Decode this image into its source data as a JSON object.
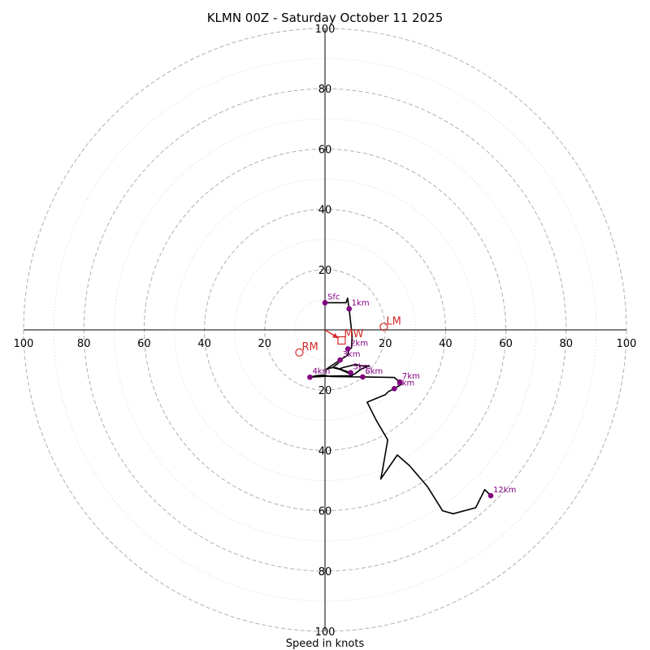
{
  "chart_data": {
    "type": "hodograph",
    "title": "KLMN 00Z - Saturday October 11 2025",
    "xlabel": "Speed in knots",
    "xlim": [
      -100,
      100
    ],
    "ylim": [
      -100,
      100
    ],
    "rings_dashed": [
      20,
      40,
      60,
      80,
      100
    ],
    "rings_dotted": [
      10,
      30,
      50,
      70,
      90
    ],
    "x_ticks": [
      {
        "value": -100,
        "label": "100"
      },
      {
        "value": -80,
        "label": "80"
      },
      {
        "value": -60,
        "label": "60"
      },
      {
        "value": -40,
        "label": "40"
      },
      {
        "value": -20,
        "label": "20"
      },
      {
        "value": 20,
        "label": "20"
      },
      {
        "value": 40,
        "label": "40"
      },
      {
        "value": 60,
        "label": "60"
      },
      {
        "value": 80,
        "label": "80"
      },
      {
        "value": 100,
        "label": "100"
      }
    ],
    "y_ticks": [
      {
        "value": 100,
        "label": "100"
      },
      {
        "value": 80,
        "label": "80"
      },
      {
        "value": 60,
        "label": "60"
      },
      {
        "value": 40,
        "label": "40"
      },
      {
        "value": 20,
        "label": "20"
      },
      {
        "value": -20,
        "label": "20"
      },
      {
        "value": -40,
        "label": "40"
      },
      {
        "value": -60,
        "label": "60"
      },
      {
        "value": -80,
        "label": "80"
      },
      {
        "value": -100,
        "label": "100"
      }
    ],
    "trace": [
      [
        0,
        9
      ],
      [
        7,
        9
      ],
      [
        7.5,
        10.5
      ],
      [
        8,
        7
      ],
      [
        9,
        -2
      ],
      [
        8.8,
        -6
      ],
      [
        8,
        -6.5
      ],
      [
        7.4,
        -8.5
      ],
      [
        5,
        -10
      ],
      [
        2,
        -12
      ],
      [
        0.5,
        -13
      ],
      [
        2.5,
        -12.5
      ],
      [
        4.5,
        -11
      ],
      [
        2.5,
        -12.5
      ],
      [
        4.5,
        -13
      ],
      [
        6,
        -12.5
      ],
      [
        10,
        -11.5
      ],
      [
        12.5,
        -12
      ],
      [
        14.5,
        -12
      ],
      [
        12,
        -13
      ],
      [
        10,
        -14.5
      ],
      [
        9,
        -15
      ],
      [
        7,
        -14
      ],
      [
        3.5,
        -12.5
      ],
      [
        8.5,
        -14.2
      ],
      [
        9,
        -15.2
      ],
      [
        2,
        -15.3
      ],
      [
        -5,
        -15.7
      ],
      [
        -3,
        -15.2
      ],
      [
        -0.5,
        -15
      ],
      [
        2,
        -15.5
      ],
      [
        12.5,
        -15.6
      ],
      [
        23,
        -15.8
      ],
      [
        24.8,
        -17.3
      ],
      [
        25.5,
        -18
      ],
      [
        23,
        -19.5
      ],
      [
        21,
        -20.5
      ],
      [
        20,
        -21.5
      ],
      [
        14,
        -24
      ],
      [
        17,
        -30
      ],
      [
        20.8,
        -36.5
      ],
      [
        19,
        -47
      ],
      [
        18.5,
        -49.5
      ],
      [
        24,
        -41.5
      ],
      [
        28,
        -45
      ],
      [
        34,
        -52
      ],
      [
        39,
        -60
      ],
      [
        42.5,
        -61
      ],
      [
        50,
        -59
      ],
      [
        53,
        -53
      ],
      [
        55,
        -55
      ]
    ],
    "height_points": [
      {
        "label": "Sfc",
        "u": 0,
        "v": 9
      },
      {
        "label": "1km",
        "u": 8,
        "v": 7
      },
      {
        "label": "2km",
        "u": 7.6,
        "v": -6.3
      },
      {
        "label": "3km",
        "u": 5,
        "v": -10
      },
      {
        "label": "4km",
        "u": -5,
        "v": -15.7
      },
      {
        "label": "5km",
        "u": 8.5,
        "v": -14.2
      },
      {
        "label": "6km",
        "u": 12.5,
        "v": -15.6
      },
      {
        "label": "7km",
        "u": 24.8,
        "v": -17.3
      },
      {
        "label": "8km",
        "u": 23,
        "v": -19.5
      },
      {
        "label": "12km",
        "u": 55,
        "v": -55
      }
    ],
    "storm_motions": [
      {
        "label": "LM",
        "u": 19.5,
        "v": 1,
        "marker": "circle"
      },
      {
        "label": "RM",
        "u": -8.5,
        "v": -7.5,
        "marker": "circle"
      },
      {
        "label": "MW",
        "u": 5.5,
        "v": -3.5,
        "marker": "square"
      }
    ],
    "storm_vector": {
      "from": [
        0,
        0
      ],
      "to": [
        4.5,
        -2.8
      ]
    },
    "colors": {
      "trace": "#000000",
      "points": "#800080",
      "storm": "#d62728",
      "ring": "#b0b0b0",
      "ring_dotted": "#d0d0d0",
      "axis": "#000000"
    }
  }
}
